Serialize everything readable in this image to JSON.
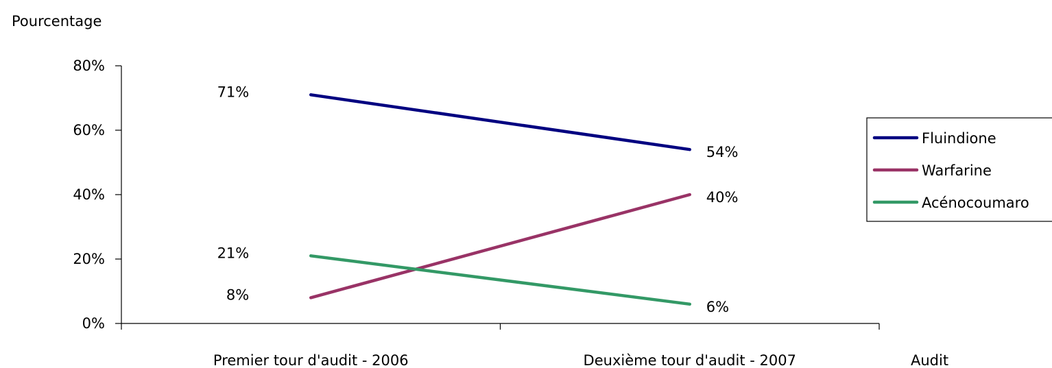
{
  "chart_data": {
    "type": "line",
    "ylabel": "Pourcentage",
    "xlabel": "Audit",
    "categories": [
      "Premier tour d'audit - 2006",
      "Deuxième tour d'audit - 2007"
    ],
    "ylim": [
      0,
      80
    ],
    "y_ticks": [
      {
        "value": 0,
        "label": "0%"
      },
      {
        "value": 20,
        "label": "20%"
      },
      {
        "value": 40,
        "label": "40%"
      },
      {
        "value": 60,
        "label": "60%"
      },
      {
        "value": 80,
        "label": "80%"
      }
    ],
    "grid": false,
    "legend_position": "right",
    "series": [
      {
        "name": "Fluindione",
        "values": [
          71,
          54
        ],
        "labels": [
          "71%",
          "54%"
        ],
        "color": "#000080"
      },
      {
        "name": "Warfarine",
        "values": [
          8,
          40
        ],
        "labels": [
          "8%",
          "40%"
        ],
        "color": "#993366"
      },
      {
        "name": "Acénocoumaro",
        "values": [
          21,
          6
        ],
        "labels": [
          "21%",
          "6%"
        ],
        "color": "#339966"
      }
    ]
  }
}
